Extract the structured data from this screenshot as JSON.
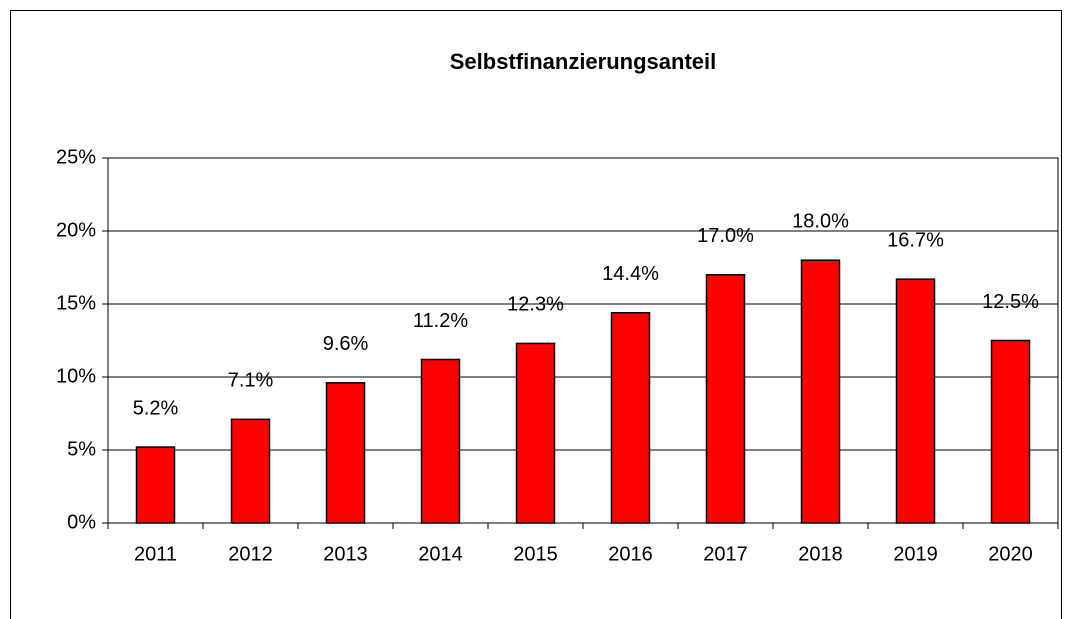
{
  "chart_data": {
    "type": "bar",
    "title": "Selbstfinanzierungsanteil",
    "categories": [
      "2011",
      "2012",
      "2013",
      "2014",
      "2015",
      "2016",
      "2017",
      "2018",
      "2019",
      "2020"
    ],
    "values": [
      5.2,
      7.1,
      9.6,
      11.2,
      12.3,
      14.4,
      17.0,
      18.0,
      16.7,
      12.5
    ],
    "value_labels": [
      "5.2%",
      "7.1%",
      "9.6%",
      "11.2%",
      "12.3%",
      "14.4%",
      "17.0%",
      "18.0%",
      "16.7%",
      "12.5%"
    ],
    "color": "#ff0000",
    "ylim": [
      0,
      25
    ],
    "yticks": [
      {
        "value": 0,
        "label": "0%"
      },
      {
        "value": 5,
        "label": "5%"
      },
      {
        "value": 10,
        "label": "10%"
      },
      {
        "value": 15,
        "label": "15%"
      },
      {
        "value": 20,
        "label": "20%"
      },
      {
        "value": 25,
        "label": "25%"
      }
    ],
    "grid": true
  }
}
